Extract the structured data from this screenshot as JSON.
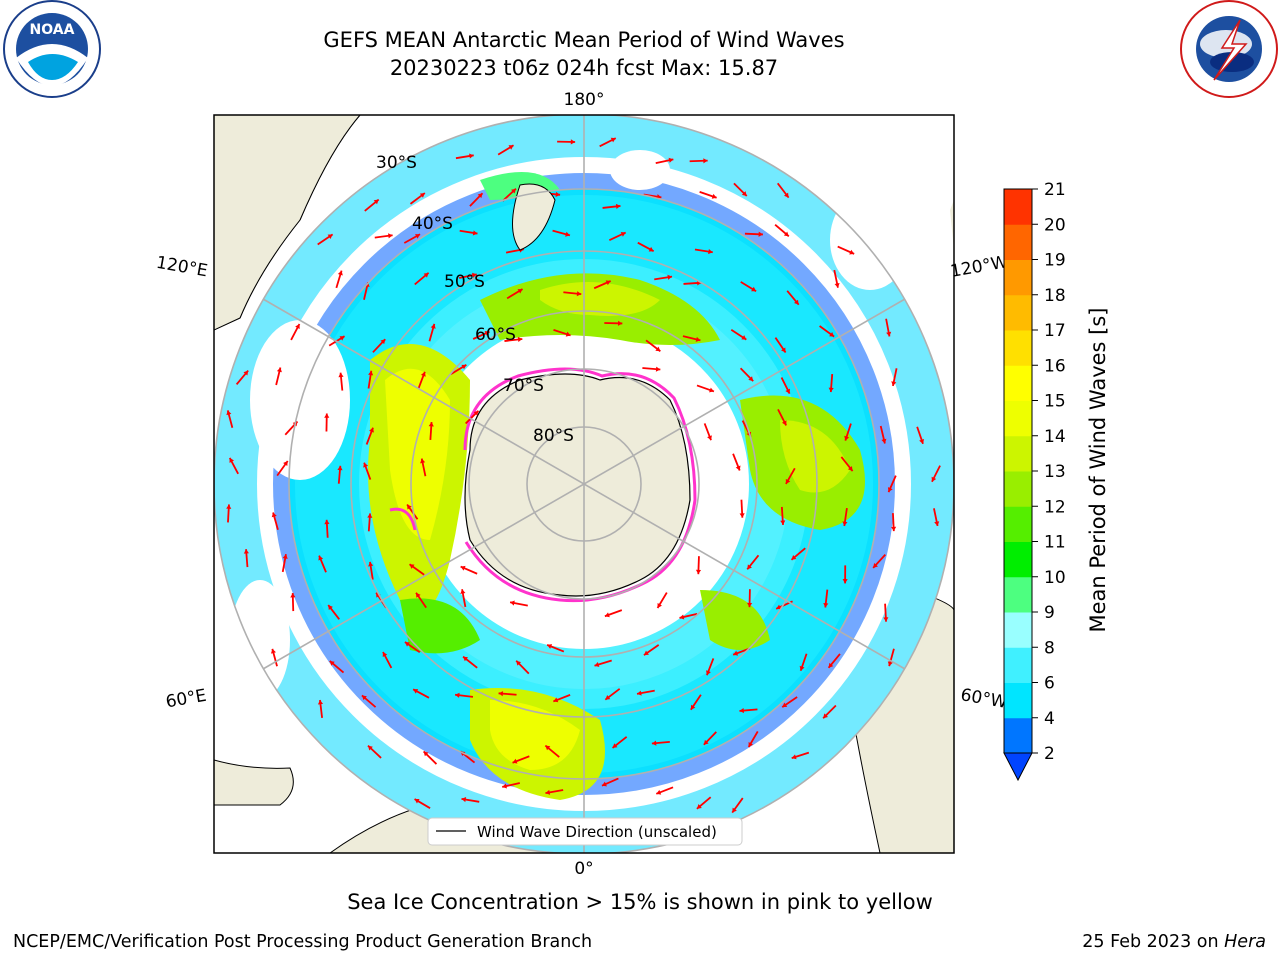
{
  "title_line1": "GEFS MEAN Antarctic Mean Period of Wind Waves",
  "title_line2": "20230223 t06z 024h fcst   Max: 15.87",
  "subtitle": "Sea Ice Concentration > 15% is shown in pink to yellow",
  "footer_left": "NCEP/EMC/Verification Post Processing Product Generation Branch",
  "footer_right_date": "25 Feb 2023 on ",
  "footer_right_host": "Hera",
  "logos": {
    "noaa": {
      "text": "NOAA",
      "ring_text": "NATIONAL OCEANIC AND ATMOSPHERIC ADMINISTRATION · U.S. DEPARTMENT OF COMMERCE"
    },
    "nws": {
      "ring_text": "NATIONAL WEATHER SERVICE"
    }
  },
  "map": {
    "projection": "south-polar-stereographic",
    "longitude_labels": {
      "top": "180°",
      "bottom": "0°",
      "upper_left": "120°E",
      "upper_right": "120°W",
      "lower_left": "60°E",
      "lower_right": "60°W"
    },
    "latitude_labels": [
      "30°S",
      "40°S",
      "50°S",
      "60°S",
      "70°S",
      "80°S"
    ],
    "legend_label": "Wind Wave Direction (unscaled)",
    "colors": {
      "land": "#eeecda",
      "graticule": "#b0b0b0",
      "arrow": "#ff0000",
      "sea_ice_edge": "#ff33cc"
    }
  },
  "colorbar": {
    "label": "Mean Period of Wind Waves [s]",
    "ticks": [
      "2",
      "4",
      "6",
      "8",
      "9",
      "10",
      "11",
      "12",
      "13",
      "14",
      "15",
      "16",
      "17",
      "18",
      "19",
      "20",
      "21"
    ],
    "colors": [
      "#0076ff",
      "#00e5ff",
      "#40f0ff",
      "#99ffff",
      "#4dff80",
      "#00ee00",
      "#55ee00",
      "#99ee00",
      "#ccf500",
      "#eeff00",
      "#ffff00",
      "#ffe000",
      "#ffbb00",
      "#ff9900",
      "#ff6600",
      "#ff3300"
    ],
    "extend_color": "#0044ff"
  },
  "chart_data": {
    "type": "heatmap",
    "title": "GEFS MEAN Antarctic Mean Period of Wind Waves",
    "subtitle": "20230223 t06z 024h fcst   Max: 15.87",
    "colorbar_label": "Mean Period of Wind Waves [s]",
    "colorbar_range": [
      2,
      21
    ],
    "max_value": 15.87
  }
}
